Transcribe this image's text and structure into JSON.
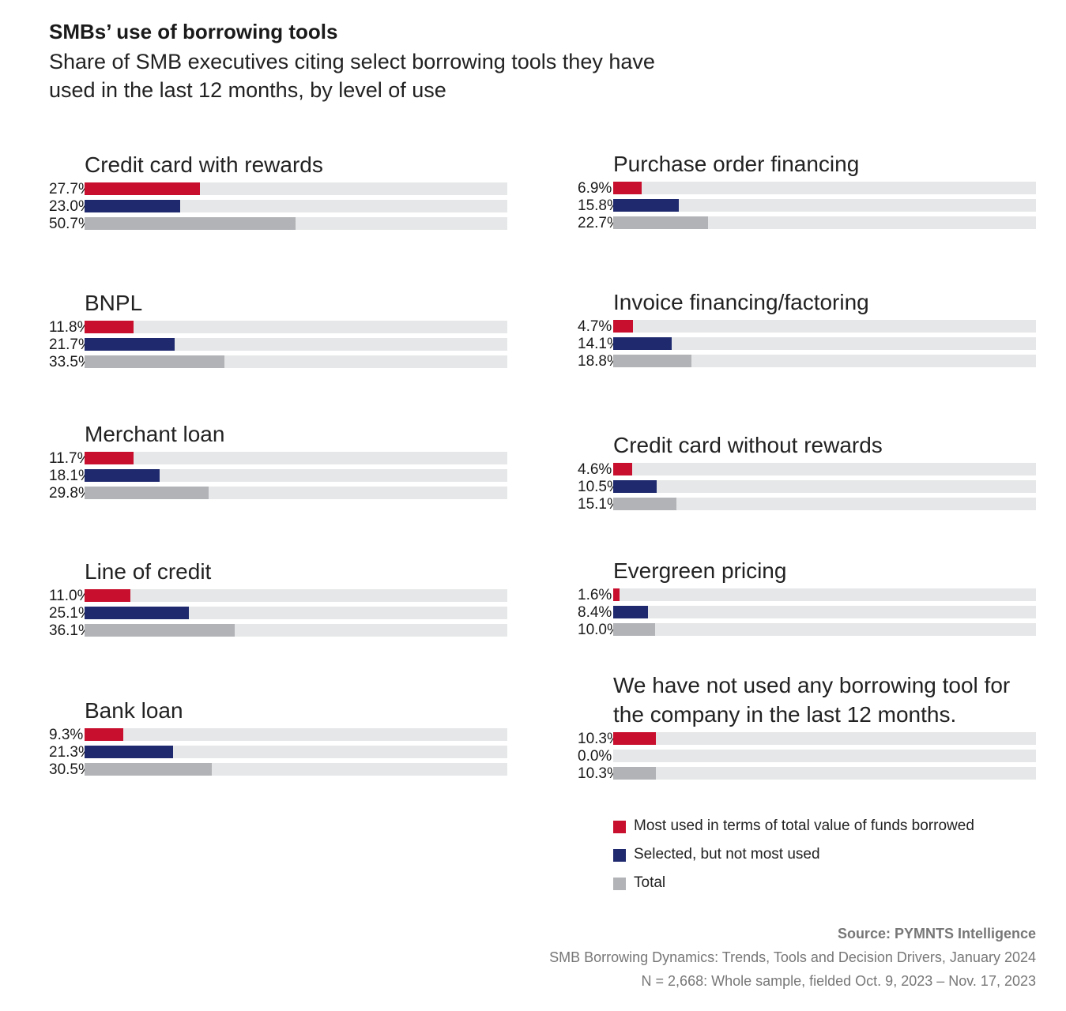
{
  "chart_data": {
    "type": "bar",
    "orientation": "horizontal",
    "title": "SMBs’ use of borrowing tools",
    "subtitle": "Share of SMB executives citing select borrowing tools they have used in the last 12 months, by level of use",
    "xlim": [
      0,
      100
    ],
    "colors": {
      "most_used": "#c8102e",
      "selected": "#1f2a6e",
      "total": "#b1b3b6",
      "track": "#e6e7e8"
    },
    "series_names": [
      "Most used in terms of total value of funds borrowed",
      "Selected, but not most used",
      "Total"
    ],
    "categories": [
      {
        "name": "Credit card with rewards",
        "values": [
          27.7,
          23.0,
          50.7
        ],
        "labels": [
          "27.7%",
          "23.0%",
          "50.7%"
        ]
      },
      {
        "name": "BNPL",
        "values": [
          11.8,
          21.7,
          33.5
        ],
        "labels": [
          "11.8%",
          "21.7%",
          "33.5%"
        ]
      },
      {
        "name": "Merchant loan",
        "values": [
          11.7,
          18.1,
          29.8
        ],
        "labels": [
          "11.7%",
          "18.1%",
          "29.8%"
        ]
      },
      {
        "name": "Line of credit",
        "values": [
          11.0,
          25.1,
          36.1
        ],
        "labels": [
          "11.0%",
          "25.1%",
          "36.1%"
        ]
      },
      {
        "name": "Bank loan",
        "values": [
          9.3,
          21.3,
          30.5
        ],
        "labels": [
          "9.3%",
          "21.3%",
          "30.5%"
        ]
      },
      {
        "name": "Purchase order financing",
        "values": [
          6.9,
          15.8,
          22.7
        ],
        "labels": [
          "6.9%",
          "15.8%",
          "22.7%"
        ]
      },
      {
        "name": "Invoice financing/factoring",
        "values": [
          4.7,
          14.1,
          18.8
        ],
        "labels": [
          "4.7%",
          "14.1%",
          "18.8%"
        ]
      },
      {
        "name": "Credit card without rewards",
        "values": [
          4.6,
          10.5,
          15.1
        ],
        "labels": [
          "4.6%",
          "10.5%",
          "15.1%"
        ]
      },
      {
        "name": "Evergreen pricing",
        "values": [
          1.6,
          8.4,
          10.0
        ],
        "labels": [
          "1.6%",
          "8.4%",
          "10.0%"
        ]
      },
      {
        "name": "We have not used any borrowing tool for the company in the last 12 months.",
        "values": [
          10.3,
          0.0,
          10.3
        ],
        "labels": [
          "10.3%",
          "0.0%",
          "10.3%"
        ]
      }
    ],
    "legend": [
      {
        "label": "Most used in terms of total value of funds borrowed",
        "color": "#c8102e"
      },
      {
        "label": "Selected, but not most used",
        "color": "#1f2a6e"
      },
      {
        "label": "Total",
        "color": "#b1b3b6"
      }
    ],
    "legend_position": "bottom-right"
  },
  "footer": {
    "source": "Source: PYMNTS Intelligence",
    "report": "SMB Borrowing Dynamics: Trends, Tools and Decision Drivers, January 2024",
    "sample": "N = 2,668: Whole sample, fielded Oct. 9, 2023 – Nov. 17, 2023"
  }
}
